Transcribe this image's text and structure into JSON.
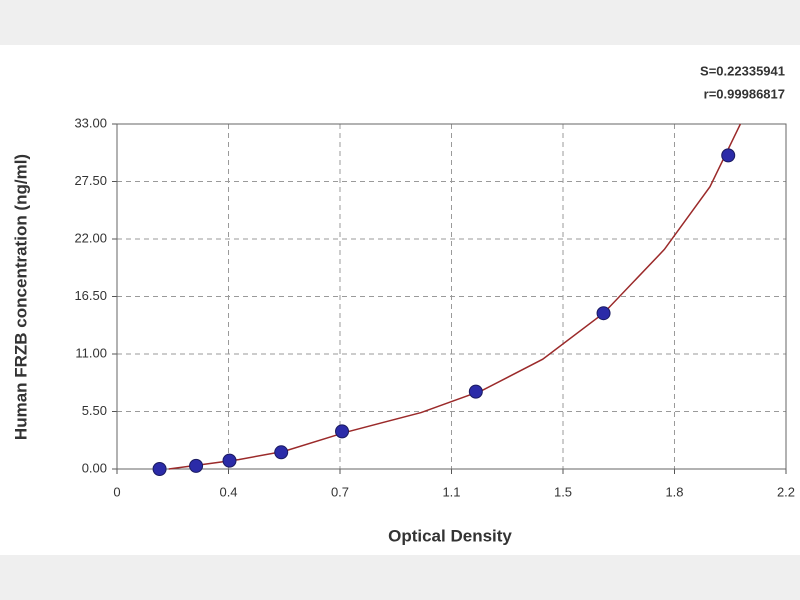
{
  "chart_data": {
    "type": "scatter",
    "x_label": "Optical Density",
    "y_label": "Human FRZB concentration (ng/ml)",
    "annotations": [
      "S=0.22335941",
      "r=0.99986817"
    ],
    "points": {
      "color": "#2b2ba8",
      "x": [
        0.14,
        0.26,
        0.37,
        0.54,
        0.74,
        1.18,
        1.6,
        2.01
      ],
      "values": [
        0.0,
        0.3,
        0.8,
        1.6,
        3.6,
        7.4,
        14.9,
        30.0
      ]
    },
    "fit": {
      "color": "#9b2a2a",
      "x": [
        0.17,
        0.3,
        0.4,
        0.55,
        0.75,
        1.0,
        1.2,
        1.4,
        1.6,
        1.8,
        1.95,
        2.05
      ],
      "values": [
        0.0,
        0.5,
        0.9,
        1.7,
        3.5,
        5.4,
        7.5,
        10.5,
        14.9,
        21.0,
        27.0,
        33.0
      ]
    },
    "xlim": [
      0,
      2.2
    ],
    "ylim": [
      0,
      33
    ],
    "xticks": [
      0,
      {
        "value": 0.3667,
        "label": "0.4"
      },
      {
        "value": 0.7333,
        "label": "0.7"
      },
      1.1,
      {
        "value": 1.4667,
        "label": "1.5"
      },
      {
        "value": 1.8333,
        "label": "1.8"
      },
      2.2
    ],
    "yticks": [
      {
        "value": 0,
        "label": "0.00"
      },
      {
        "value": 5.5,
        "label": "5.50"
      },
      {
        "value": 11,
        "label": "11.00"
      },
      {
        "value": 16.5,
        "label": "16.50"
      },
      {
        "value": 22,
        "label": "22.00"
      },
      {
        "value": 27.5,
        "label": "27.50"
      },
      {
        "value": 33,
        "label": "33.00"
      }
    ],
    "grid": true
  }
}
